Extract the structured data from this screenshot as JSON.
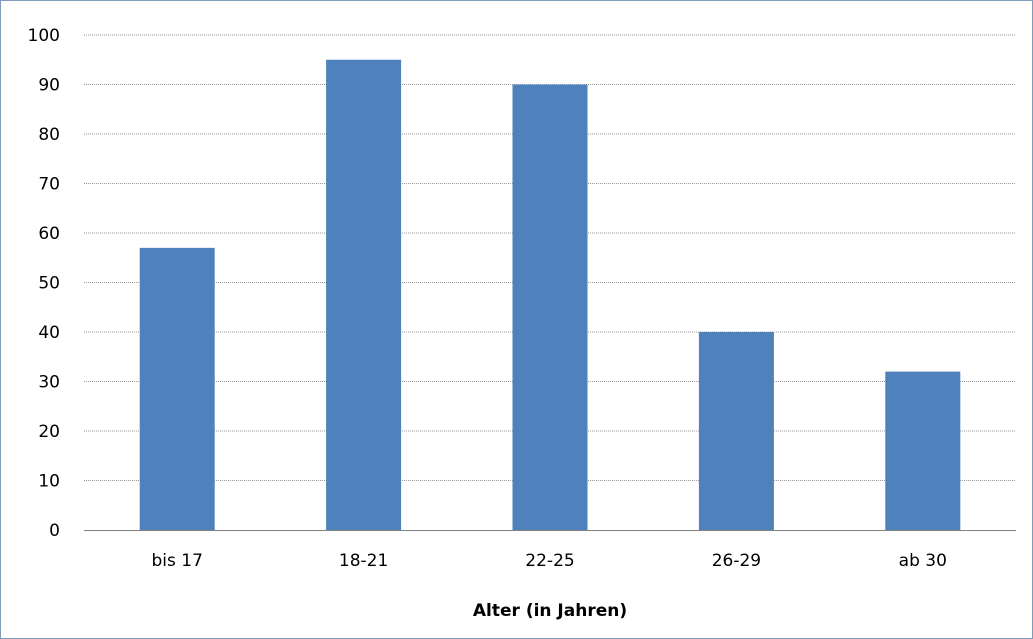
{
  "chart_data": {
    "type": "bar",
    "categories": [
      "bis 17",
      "18-21",
      "22-25",
      "26-29",
      "ab 30"
    ],
    "values": [
      57,
      95,
      90,
      40,
      32
    ],
    "xlabel": "Alter (in Jahren)",
    "ylabel": "",
    "ylim": [
      0,
      100
    ],
    "yticks": [
      0,
      10,
      20,
      30,
      40,
      50,
      60,
      70,
      80,
      90,
      100
    ],
    "grid": true,
    "legend": "none",
    "bar_color": "#4f81bd",
    "gridline_color": "#999999"
  }
}
